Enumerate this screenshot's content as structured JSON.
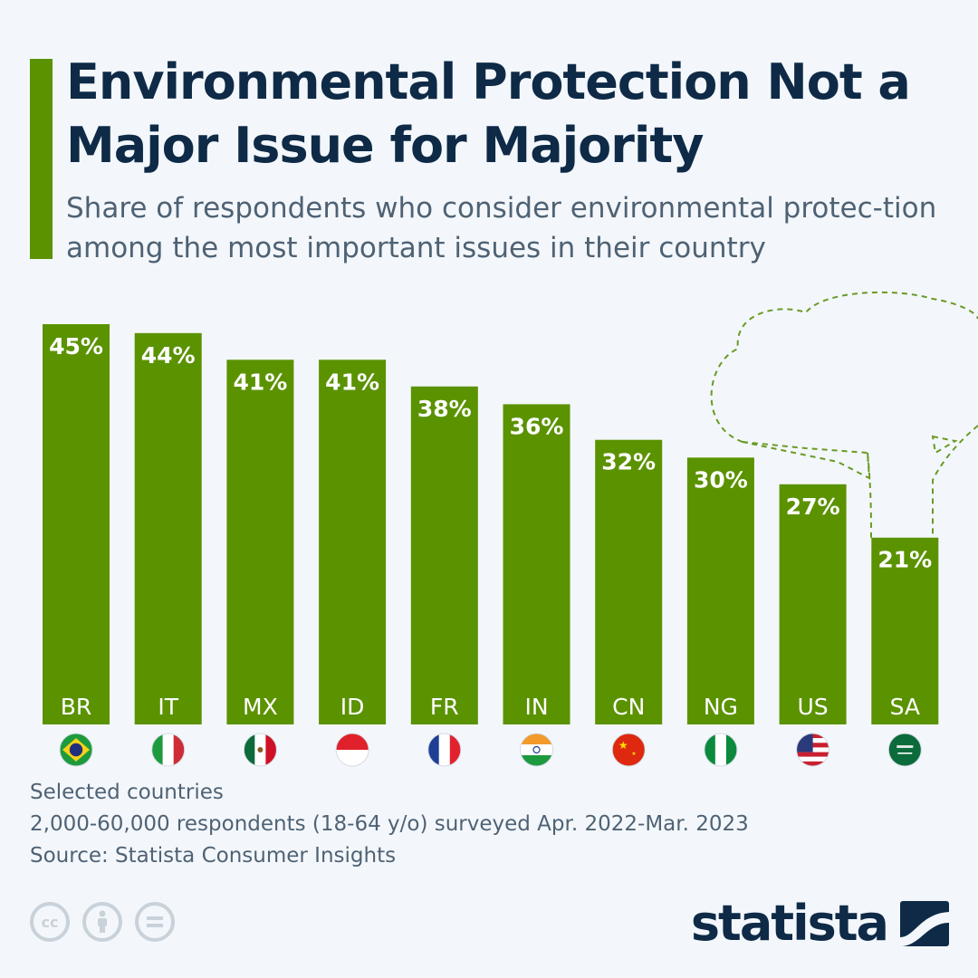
{
  "header": {
    "title": "Environmental Protection Not a Major Issue for Majority",
    "subtitle": "Share of respondents who consider environmental protec-tion among the most important issues in their country"
  },
  "chart_data": {
    "type": "bar",
    "title": "Environmental Protection Not a Major Issue for Majority",
    "subtitle": "Share of respondents who consider environmental protection among the most important issues in their country",
    "categories": [
      "BR",
      "IT",
      "MX",
      "ID",
      "FR",
      "IN",
      "CN",
      "NG",
      "US",
      "SA"
    ],
    "values": [
      45,
      44,
      41,
      41,
      38,
      36,
      32,
      30,
      27,
      21
    ],
    "value_labels": [
      "45%",
      "44%",
      "41%",
      "41%",
      "38%",
      "36%",
      "32%",
      "30%",
      "27%",
      "21%"
    ],
    "flags": [
      "flag-brazil-icon",
      "flag-italy-icon",
      "flag-mexico-icon",
      "flag-indonesia-icon",
      "flag-france-icon",
      "flag-india-icon",
      "flag-china-icon",
      "flag-nigeria-icon",
      "flag-usa-icon",
      "flag-saudi-arabia-icon"
    ],
    "unit": "%",
    "ylim": [
      0,
      45
    ],
    "grid": false,
    "bar_color": "#5b9200",
    "xlabel": "",
    "ylabel": ""
  },
  "footer": {
    "notes": [
      "Selected countries",
      "2,000-60,000 respondents (18-64 y/o) surveyed Apr. 2022-Mar. 2023",
      "Source: Statista Consumer Insights"
    ],
    "license_icons": [
      "cc-icon",
      "attribution-icon",
      "no-derivatives-icon"
    ],
    "brand": "statista"
  },
  "colors": {
    "accent": "#5b9200",
    "title": "#0e2a47",
    "subtitle": "#4f6274",
    "background": "#f3f7fb",
    "decoration": "#6a9a24"
  }
}
